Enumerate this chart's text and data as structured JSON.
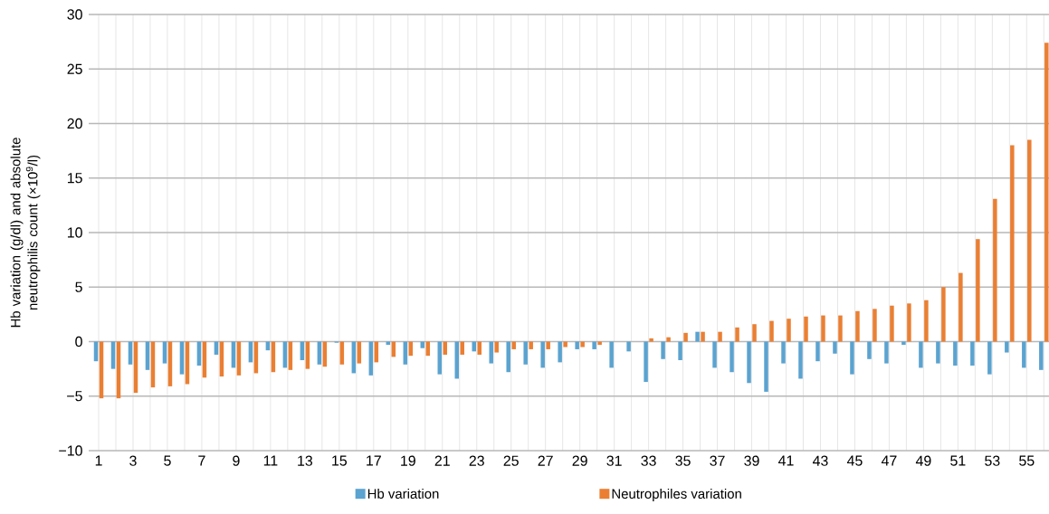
{
  "chart_data": {
    "type": "bar",
    "ylabel": "Hb variation (g/dl) and absolute neutrophilis count (×10$^{9}$/l)",
    "categories": [
      "1",
      null,
      "3",
      null,
      "5",
      null,
      "7",
      null,
      "9",
      null,
      "11",
      null,
      "13",
      null,
      "15",
      null,
      "17",
      null,
      "19",
      null,
      "21",
      null,
      "23",
      null,
      "25",
      null,
      "27",
      null,
      "29",
      null,
      "31",
      null,
      "33",
      null,
      "35",
      null,
      "37",
      null,
      "39",
      null,
      "41",
      null,
      "43",
      null,
      "45",
      null,
      "47",
      null,
      "49",
      null,
      "51",
      null,
      "53",
      null,
      "55",
      null
    ],
    "series": [
      {
        "name": "Hb variation",
        "color": "#5ba3d0",
        "values": [
          -1.8,
          -2.5,
          -2.1,
          -2.6,
          -2.0,
          -3.0,
          -2.2,
          -1.2,
          -2.4,
          -1.9,
          -0.8,
          -2.4,
          -1.7,
          -2.1,
          -0.1,
          -2.9,
          -3.1,
          -0.3,
          -2.1,
          -0.6,
          -3.0,
          -3.4,
          -0.9,
          -2.0,
          -2.8,
          -2.1,
          -2.4,
          -1.9,
          -0.7,
          -0.7,
          -2.4,
          -0.9,
          -3.7,
          -1.6,
          -1.7,
          0.9,
          -2.4,
          -2.8,
          -3.8,
          -4.6,
          -2.0,
          -3.4,
          -1.8,
          -1.1,
          -3.0,
          -1.6,
          -2.0,
          -0.3,
          -2.4,
          -2.0,
          -2.2,
          -2.2,
          -3.0,
          -1.0,
          -2.4,
          -2.6
        ]
      },
      {
        "name": "Neutrophiles variation",
        "color": "#ea7f33",
        "values": [
          -5.2,
          -5.2,
          -4.7,
          -4.2,
          -4.1,
          -3.9,
          -3.3,
          -3.2,
          -3.1,
          -2.9,
          -2.8,
          -2.6,
          -2.5,
          -2.3,
          -2.1,
          -2.0,
          -1.9,
          -1.4,
          -1.3,
          -1.3,
          -1.2,
          -1.2,
          -1.2,
          -1.0,
          -0.7,
          -0.7,
          -0.7,
          -0.5,
          -0.5,
          -0.3,
          0,
          0,
          0.3,
          0.4,
          0.8,
          0.9,
          0.9,
          1.3,
          1.6,
          1.9,
          2.1,
          2.3,
          2.4,
          2.4,
          2.8,
          3.0,
          3.3,
          3.5,
          3.8,
          5.0,
          6.3,
          9.4,
          13.1,
          18.0,
          18.5,
          27.4
        ]
      }
    ],
    "ylim": [
      -10,
      30
    ],
    "yticks": [
      {
        "value": -10,
        "label": "−10"
      },
      {
        "value": -5,
        "label": "−5"
      },
      0,
      5,
      10,
      15,
      20,
      25,
      30
    ],
    "grid": true,
    "legend": "bottom"
  }
}
